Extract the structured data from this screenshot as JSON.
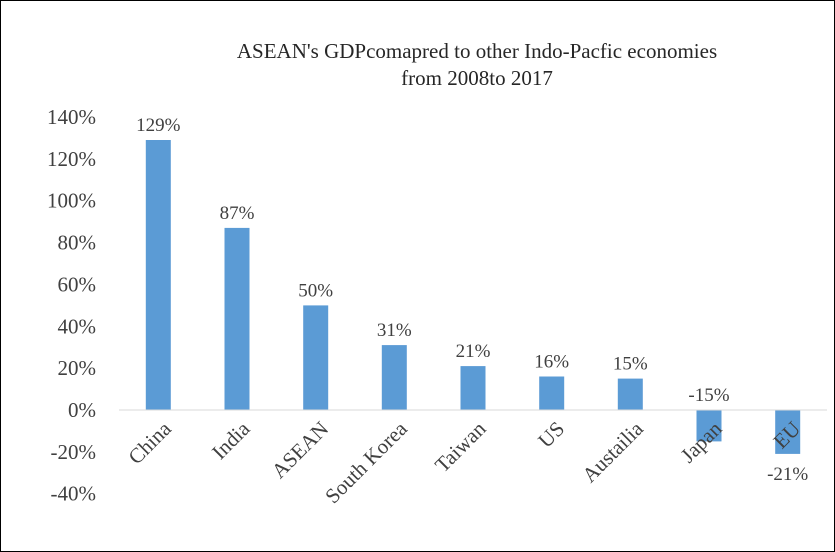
{
  "chart_data": {
    "type": "bar",
    "title_lines": [
      "ASEAN's GDPcomapred to other Indo-Pacfic economies",
      "from 2008to 2017"
    ],
    "categories": [
      "China",
      "India",
      "ASEAN",
      "South Korea",
      "Taiwan",
      "US",
      "Austailia",
      "Japan",
      "EU"
    ],
    "values": [
      129,
      87,
      50,
      31,
      21,
      16,
      15,
      -15,
      -21
    ],
    "data_labels": [
      "129%",
      "87%",
      "50%",
      "31%",
      "21%",
      "16%",
      "15%",
      "-15%",
      "-21%"
    ],
    "y_ticks": [
      140,
      120,
      100,
      80,
      60,
      40,
      20,
      0,
      -20,
      -40
    ],
    "y_tick_labels": [
      "140%",
      "120%",
      "100%",
      "80%",
      "60%",
      "40%",
      "20%",
      "0%",
      "-20%",
      "-40%"
    ],
    "ylim": [
      -40,
      140
    ],
    "grid": false,
    "legend": false,
    "colors": {
      "bar": "#5B9BD5",
      "axis": "#D9D9D9",
      "text": "#404040",
      "title": "#262626"
    }
  }
}
